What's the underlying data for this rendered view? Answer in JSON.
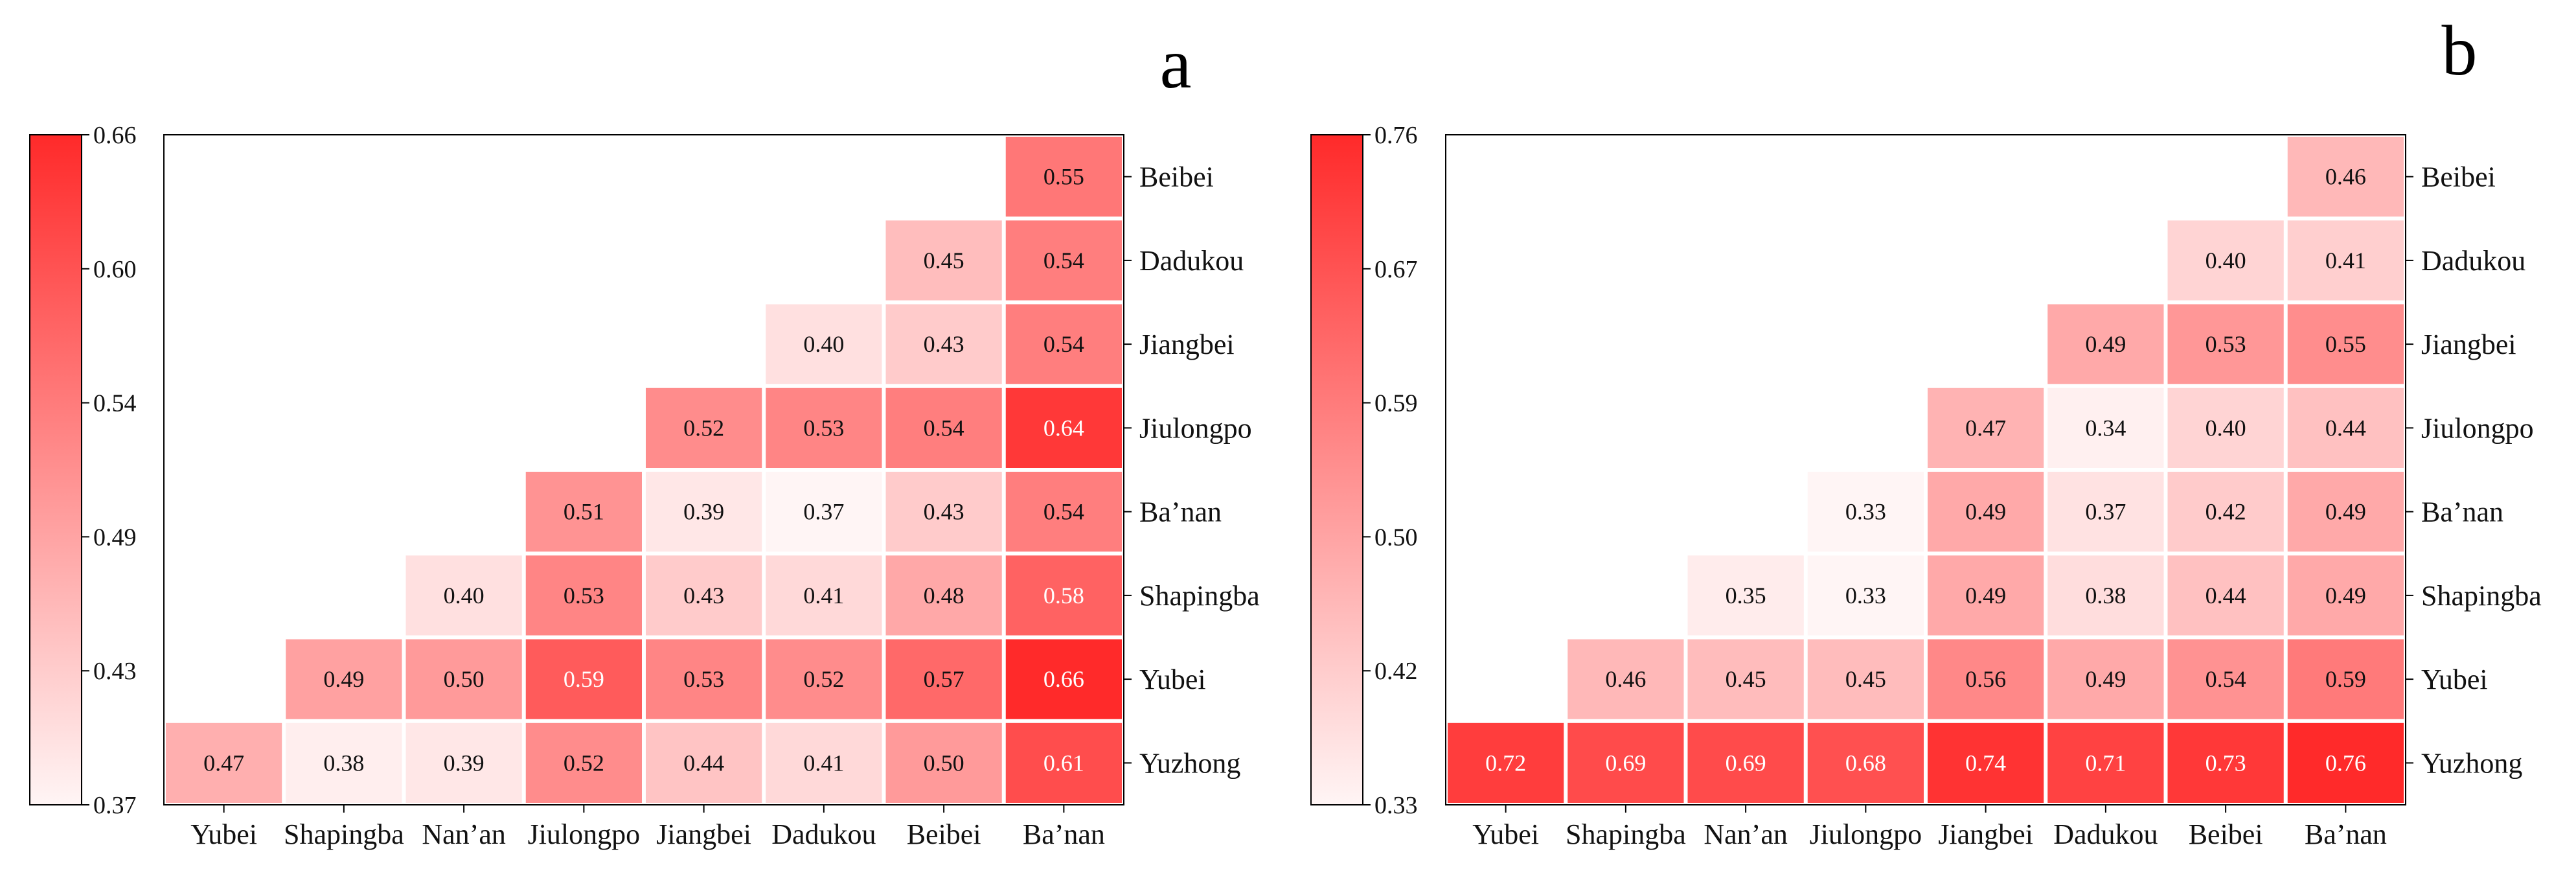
{
  "chart_data": [
    {
      "type": "heatmap",
      "panel_label": "a",
      "x_categories": [
        "Yubei",
        "Shapingba",
        "Nan’an",
        "Jiulongpo",
        "Jiangbei",
        "Dadukou",
        "Beibei",
        "Ba’nan"
      ],
      "y_categories": [
        "Beibei",
        "Dadukou",
        "Jiangbei",
        "Jiulongpo",
        "Ba’nan",
        "Shapingba",
        "Yubei",
        "Yuzhong"
      ],
      "values": [
        [
          null,
          null,
          null,
          null,
          null,
          null,
          null,
          0.55
        ],
        [
          null,
          null,
          null,
          null,
          null,
          null,
          0.45,
          0.54
        ],
        [
          null,
          null,
          null,
          null,
          null,
          0.4,
          0.43,
          0.54
        ],
        [
          null,
          null,
          null,
          null,
          0.52,
          0.53,
          0.54,
          0.64
        ],
        [
          null,
          null,
          null,
          0.51,
          0.39,
          0.37,
          0.43,
          0.54
        ],
        [
          null,
          null,
          0.4,
          0.53,
          0.43,
          0.41,
          0.48,
          0.58
        ],
        [
          null,
          0.49,
          0.5,
          0.59,
          0.53,
          0.52,
          0.57,
          0.66
        ],
        [
          0.47,
          0.38,
          0.39,
          0.52,
          0.44,
          0.41,
          0.5,
          0.61
        ]
      ],
      "colorbar": {
        "min": 0.37,
        "max": 0.66,
        "ticks": [
          "0.66",
          "0.60",
          "0.54",
          "0.49",
          "0.43",
          "0.37"
        ]
      },
      "colors": {
        "low": "#fff5f5",
        "high": "#ff2a2a"
      }
    },
    {
      "type": "heatmap",
      "panel_label": "b",
      "x_categories": [
        "Yubei",
        "Shapingba",
        "Nan’an",
        "Jiulongpo",
        "Jiangbei",
        "Dadukou",
        "Beibei",
        "Ba’nan"
      ],
      "y_categories": [
        "Beibei",
        "Dadukou",
        "Jiangbei",
        "Jiulongpo",
        "Ba’nan",
        "Shapingba",
        "Yubei",
        "Yuzhong"
      ],
      "values": [
        [
          null,
          null,
          null,
          null,
          null,
          null,
          null,
          0.46
        ],
        [
          null,
          null,
          null,
          null,
          null,
          null,
          0.4,
          0.41
        ],
        [
          null,
          null,
          null,
          null,
          null,
          0.49,
          0.53,
          0.55
        ],
        [
          null,
          null,
          null,
          null,
          0.47,
          0.34,
          0.4,
          0.44
        ],
        [
          null,
          null,
          null,
          0.33,
          0.49,
          0.37,
          0.42,
          0.49
        ],
        [
          null,
          null,
          0.35,
          0.33,
          0.49,
          0.38,
          0.44,
          0.49
        ],
        [
          null,
          0.46,
          0.45,
          0.45,
          0.56,
          0.49,
          0.54,
          0.59
        ],
        [
          0.72,
          0.69,
          0.69,
          0.68,
          0.74,
          0.71,
          0.73,
          0.76
        ]
      ],
      "colorbar": {
        "min": 0.33,
        "max": 0.76,
        "ticks": [
          "0.76",
          "0.67",
          "0.59",
          "0.50",
          "0.42",
          "0.33"
        ]
      },
      "colors": {
        "low": "#fff5f5",
        "high": "#ff2a2a"
      }
    }
  ]
}
